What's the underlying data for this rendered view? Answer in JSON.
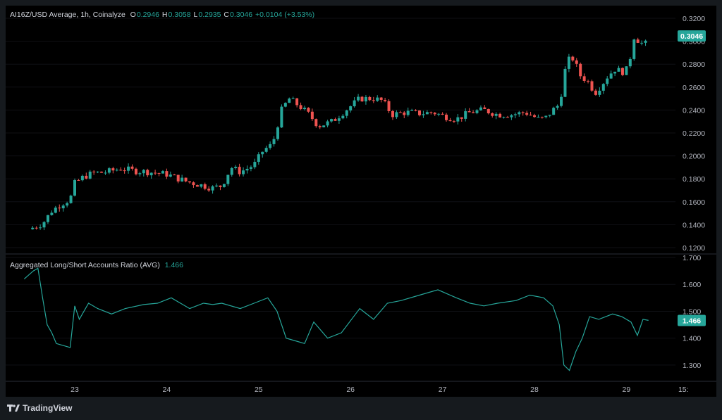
{
  "legend_main": {
    "symbol": "AI16Z/USD Average, 1h, Coinalyze",
    "o_label": "O",
    "o": "0.2946",
    "h_label": "H",
    "h": "0.3058",
    "l_label": "L",
    "l": "0.2935",
    "c_label": "C",
    "c": "0.3046",
    "change": "+0.0104 (+3.53%)"
  },
  "legend_ind": {
    "name": "Aggregated Long/Short Accounts Ratio (AVG)",
    "value": "1.466"
  },
  "footer": {
    "brand": "TradingView",
    "logo_icon": "tradingview-logo-icon"
  },
  "colors": {
    "up": "#26a69a",
    "down": "#ef5350",
    "line": "#26a69a",
    "bg": "#000000",
    "frame": "#161a1e"
  },
  "chart_data": [
    {
      "type": "candlestick",
      "title": "AI16Z/USD Average, 1h, Coinalyze",
      "x_ticks": [
        "23",
        "24",
        "25",
        "26",
        "27",
        "28",
        "29",
        "15:"
      ],
      "y_ticks": [
        "0.1200",
        "0.1400",
        "0.1600",
        "0.1800",
        "0.2000",
        "0.2200",
        "0.2400",
        "0.2600",
        "0.2800",
        "0.3000",
        "0.3200"
      ],
      "ylim": [
        0.12,
        0.32
      ],
      "last_price": "0.3046",
      "close_path": [
        [
          22.5,
          0.136
        ],
        [
          22.65,
          0.141
        ],
        [
          22.75,
          0.152
        ],
        [
          22.85,
          0.158
        ],
        [
          22.95,
          0.162
        ],
        [
          23.0,
          0.176
        ],
        [
          23.1,
          0.182
        ],
        [
          23.2,
          0.185
        ],
        [
          23.35,
          0.186
        ],
        [
          23.5,
          0.189
        ],
        [
          23.65,
          0.187
        ],
        [
          23.8,
          0.186
        ],
        [
          24.0,
          0.184
        ],
        [
          24.2,
          0.178
        ],
        [
          24.35,
          0.175
        ],
        [
          24.5,
          0.172
        ],
        [
          24.6,
          0.174
        ],
        [
          24.7,
          0.19
        ],
        [
          24.8,
          0.186
        ],
        [
          24.95,
          0.192
        ],
        [
          25.05,
          0.205
        ],
        [
          25.15,
          0.21
        ],
        [
          25.25,
          0.24
        ],
        [
          25.33,
          0.25
        ],
        [
          25.45,
          0.243
        ],
        [
          25.55,
          0.236
        ],
        [
          25.65,
          0.226
        ],
        [
          25.8,
          0.23
        ],
        [
          25.95,
          0.24
        ],
        [
          26.1,
          0.25
        ],
        [
          26.25,
          0.25
        ],
        [
          26.35,
          0.248
        ],
        [
          26.45,
          0.236
        ],
        [
          26.6,
          0.238
        ],
        [
          26.75,
          0.237
        ],
        [
          26.9,
          0.238
        ],
        [
          27.0,
          0.235
        ],
        [
          27.15,
          0.232
        ],
        [
          27.3,
          0.238
        ],
        [
          27.45,
          0.24
        ],
        [
          27.6,
          0.236
        ],
        [
          27.75,
          0.236
        ],
        [
          27.9,
          0.238
        ],
        [
          28.05,
          0.232
        ],
        [
          28.12,
          0.233
        ],
        [
          28.2,
          0.24
        ],
        [
          28.27,
          0.245
        ],
        [
          28.3,
          0.258
        ],
        [
          28.35,
          0.283
        ],
        [
          28.42,
          0.285
        ],
        [
          28.5,
          0.27
        ],
        [
          28.58,
          0.265
        ],
        [
          28.66,
          0.255
        ],
        [
          28.73,
          0.262
        ],
        [
          28.8,
          0.27
        ],
        [
          28.88,
          0.276
        ],
        [
          28.95,
          0.273
        ],
        [
          29.02,
          0.276
        ],
        [
          29.08,
          0.304
        ],
        [
          29.14,
          0.3
        ],
        [
          29.2,
          0.296
        ],
        [
          29.24,
          0.3046
        ]
      ]
    },
    {
      "type": "line",
      "title": "Aggregated Long/Short Accounts Ratio (AVG)",
      "y_ticks": [
        "1.300",
        "1.400",
        "1.500",
        "1.600",
        "1.700"
      ],
      "ylim": [
        1.25,
        1.7
      ],
      "last_value": "1.466",
      "x": [
        22.45,
        22.55,
        22.6,
        22.65,
        22.7,
        22.75,
        22.8,
        22.85,
        22.9,
        22.95,
        23.0,
        23.05,
        23.15,
        23.25,
        23.4,
        23.55,
        23.75,
        23.9,
        24.05,
        24.25,
        24.4,
        24.5,
        24.6,
        24.8,
        24.95,
        25.1,
        25.2,
        25.3,
        25.4,
        25.5,
        25.6,
        25.75,
        25.9,
        26.1,
        26.25,
        26.4,
        26.55,
        26.75,
        26.95,
        27.15,
        27.3,
        27.45,
        27.6,
        27.8,
        27.95,
        28.1,
        28.2,
        28.27,
        28.32,
        28.38,
        28.45,
        28.52,
        28.6,
        28.7,
        28.85,
        28.95,
        29.05,
        29.12,
        29.18,
        29.24
      ],
      "y": [
        1.62,
        1.65,
        1.66,
        1.55,
        1.45,
        1.42,
        1.38,
        1.375,
        1.37,
        1.365,
        1.52,
        1.47,
        1.53,
        1.51,
        1.49,
        1.51,
        1.525,
        1.53,
        1.55,
        1.51,
        1.53,
        1.525,
        1.53,
        1.51,
        1.53,
        1.55,
        1.5,
        1.4,
        1.39,
        1.38,
        1.46,
        1.4,
        1.42,
        1.51,
        1.47,
        1.53,
        1.54,
        1.56,
        1.58,
        1.55,
        1.53,
        1.52,
        1.53,
        1.54,
        1.56,
        1.55,
        1.52,
        1.45,
        1.3,
        1.28,
        1.35,
        1.4,
        1.48,
        1.47,
        1.49,
        1.48,
        1.46,
        1.41,
        1.47,
        1.466
      ]
    }
  ]
}
